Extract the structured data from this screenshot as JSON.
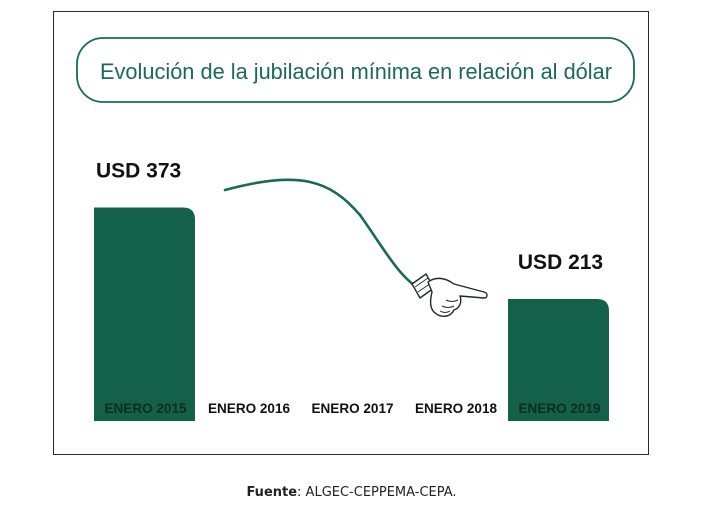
{
  "chart_data": {
    "type": "bar",
    "title": "Evolución de la jubilación mínima en relación al dólar",
    "categories": [
      "ENERO 2015",
      "ENERO 2016",
      "ENERO 2017",
      "ENERO 2018",
      "ENERO 2019"
    ],
    "values": [
      373,
      null,
      null,
      null,
      213
    ],
    "data_labels": [
      "USD 373",
      "",
      "",
      "",
      "USD 213"
    ],
    "ylim": [
      0,
      400
    ],
    "grid": false,
    "annotation": "hand-pointing-icon",
    "colors": {
      "bar": "#126148",
      "title_border": "#1a6b53",
      "curve": "#1a6b53",
      "label_light": "#ffffff",
      "label_dark": "#111111"
    }
  },
  "source": {
    "prefix": "Fuente",
    "text": ": ALGEC-CEPPEMA-CEPA."
  }
}
